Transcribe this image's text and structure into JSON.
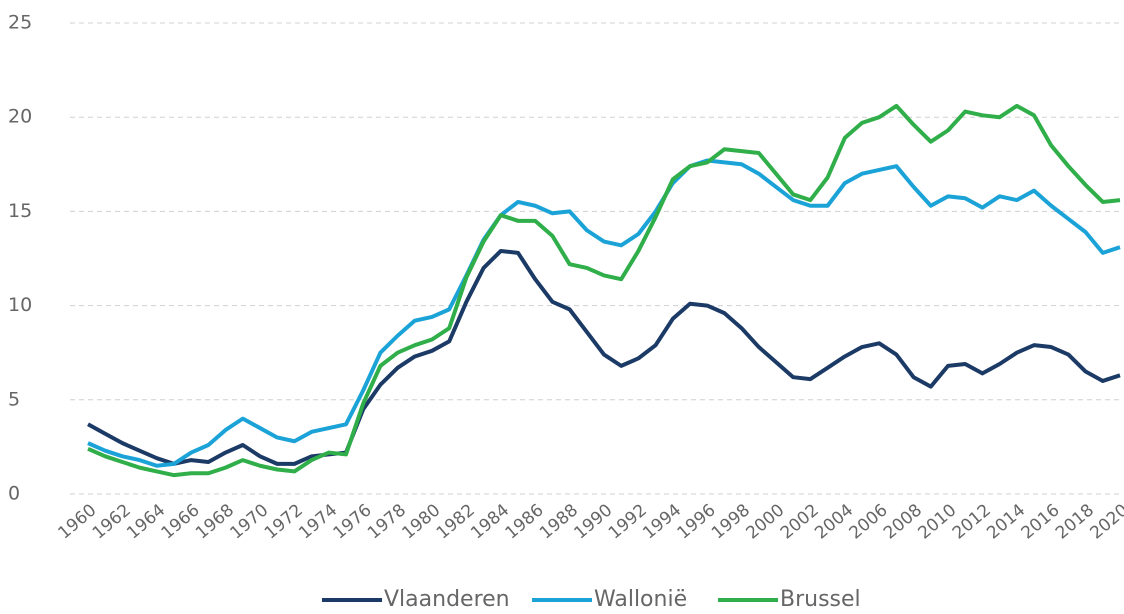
{
  "chart_data": {
    "type": "line",
    "x": [
      1960,
      1961,
      1962,
      1963,
      1964,
      1965,
      1966,
      1967,
      1968,
      1969,
      1970,
      1971,
      1972,
      1973,
      1974,
      1975,
      1976,
      1977,
      1978,
      1979,
      1980,
      1981,
      1982,
      1983,
      1984,
      1985,
      1986,
      1987,
      1988,
      1989,
      1990,
      1991,
      1992,
      1993,
      1994,
      1995,
      1996,
      1997,
      1998,
      1999,
      2000,
      2001,
      2002,
      2003,
      2004,
      2005,
      2006,
      2007,
      2008,
      2009,
      2010,
      2011,
      2012,
      2013,
      2014,
      2015,
      2016,
      2017,
      2018,
      2019,
      2020
    ],
    "xlim": [
      1960,
      2020
    ],
    "xticks": [
      1960,
      1962,
      1964,
      1966,
      1968,
      1970,
      1972,
      1974,
      1976,
      1978,
      1980,
      1982,
      1984,
      1986,
      1988,
      1990,
      1992,
      1994,
      1996,
      1998,
      2000,
      2002,
      2004,
      2006,
      2008,
      2010,
      2012,
      2014,
      2016,
      2018,
      2020
    ],
    "ylim": [
      0,
      25
    ],
    "yticks": [
      0,
      5,
      10,
      15,
      20,
      25
    ],
    "grid": true,
    "legend": "bottom",
    "series": [
      {
        "name": "Vlaanderen",
        "color": "#1b3a66",
        "values": [
          3.7,
          3.2,
          2.7,
          2.3,
          1.9,
          1.6,
          1.8,
          1.7,
          2.2,
          2.6,
          2.0,
          1.6,
          1.6,
          2.0,
          2.1,
          2.2,
          4.5,
          5.8,
          6.7,
          7.3,
          7.6,
          8.1,
          10.2,
          12.0,
          12.9,
          12.8,
          11.4,
          10.2,
          9.8,
          8.6,
          7.4,
          6.8,
          7.2,
          7.9,
          9.3,
          10.1,
          10.0,
          9.6,
          8.8,
          7.8,
          7.0,
          6.2,
          6.1,
          6.7,
          7.3,
          7.8,
          8.0,
          7.4,
          6.2,
          5.7,
          6.8,
          6.9,
          6.4,
          6.9,
          7.5,
          7.9,
          7.8,
          7.4,
          6.5,
          6.0,
          6.3
        ]
      },
      {
        "name": "Wallonië",
        "color": "#1ba3d8",
        "values": [
          2.7,
          2.3,
          2.0,
          1.8,
          1.5,
          1.6,
          2.2,
          2.6,
          3.4,
          4.0,
          3.5,
          3.0,
          2.8,
          3.3,
          3.5,
          3.7,
          5.5,
          7.5,
          8.4,
          9.2,
          9.4,
          9.8,
          11.6,
          13.5,
          14.8,
          15.5,
          15.3,
          14.9,
          15.0,
          14.0,
          13.4,
          13.2,
          13.8,
          15.0,
          16.5,
          17.4,
          17.7,
          17.6,
          17.5,
          17.0,
          16.3,
          15.6,
          15.3,
          15.3,
          16.5,
          17.0,
          17.2,
          17.4,
          16.3,
          15.3,
          15.8,
          15.7,
          15.2,
          15.8,
          15.6,
          16.1,
          15.3,
          14.6,
          13.9,
          12.8,
          13.1
        ]
      },
      {
        "name": "Brussel",
        "color": "#2fae49",
        "values": [
          2.4,
          2.0,
          1.7,
          1.4,
          1.2,
          1.0,
          1.1,
          1.1,
          1.4,
          1.8,
          1.5,
          1.3,
          1.2,
          1.8,
          2.2,
          2.1,
          4.8,
          6.8,
          7.5,
          7.9,
          8.2,
          8.8,
          11.5,
          13.4,
          14.8,
          14.5,
          14.5,
          13.7,
          12.2,
          12.0,
          11.6,
          11.4,
          12.9,
          14.7,
          16.7,
          17.4,
          17.6,
          18.3,
          18.2,
          18.1,
          17.0,
          15.9,
          15.6,
          16.8,
          18.9,
          19.7,
          20.0,
          20.6,
          19.6,
          18.7,
          19.3,
          20.3,
          20.1,
          20.0,
          20.6,
          20.1,
          18.5,
          17.4,
          16.4,
          15.5,
          15.6
        ]
      }
    ]
  }
}
